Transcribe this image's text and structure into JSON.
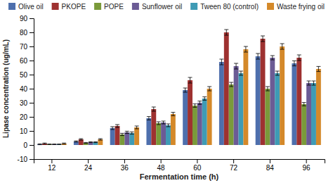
{
  "chart_data": {
    "type": "bar",
    "categories": [
      12,
      24,
      36,
      48,
      60,
      72,
      84,
      96
    ],
    "series": [
      {
        "name": "Olive oil",
        "color": "#4e6fad",
        "values": [
          0.5,
          2.5,
          12.0,
          19.0,
          39.0,
          59.0,
          63.0,
          58.0
        ],
        "errors": [
          0.3,
          0.4,
          1.0,
          1.2,
          1.5,
          2.0,
          2.0,
          1.8
        ]
      },
      {
        "name": "PKOPE",
        "color": "#9e3130",
        "values": [
          1.0,
          4.0,
          13.5,
          25.5,
          46.0,
          80.0,
          75.5,
          62.0
        ],
        "errors": [
          0.4,
          0.5,
          1.0,
          1.5,
          2.0,
          2.0,
          2.0,
          2.0
        ]
      },
      {
        "name": "POPE",
        "color": "#7a9a3a",
        "values": [
          0.5,
          1.5,
          7.5,
          15.5,
          28.0,
          43.0,
          40.0,
          29.0
        ],
        "errors": [
          0.2,
          0.3,
          0.8,
          1.0,
          1.2,
          1.5,
          1.5,
          1.2
        ]
      },
      {
        "name": "Sunflower oil",
        "color": "#6b5b95",
        "values": [
          0.5,
          2.0,
          9.0,
          16.0,
          30.0,
          56.0,
          62.0,
          44.0
        ],
        "errors": [
          0.2,
          0.3,
          0.8,
          1.0,
          1.2,
          2.0,
          1.5,
          1.5
        ]
      },
      {
        "name": "Tween 80 (control)",
        "color": "#3e9bb5",
        "values": [
          0.5,
          2.0,
          8.5,
          14.0,
          33.0,
          51.0,
          51.0,
          44.0
        ],
        "errors": [
          0.2,
          0.3,
          0.8,
          1.0,
          1.2,
          1.5,
          1.5,
          1.5
        ]
      },
      {
        "name": "Waste frying oil",
        "color": "#d4892a",
        "values": [
          1.0,
          4.0,
          12.5,
          22.0,
          40.0,
          68.0,
          70.0,
          54.0
        ],
        "errors": [
          0.4,
          0.5,
          1.0,
          1.2,
          1.5,
          2.0,
          2.0,
          1.8
        ]
      }
    ],
    "xlabel": "Fermentation time (h)",
    "ylabel": "Lipase concentration (ug/mL)",
    "ylim": [
      -10,
      90
    ],
    "yticks": [
      -10,
      0,
      10,
      20,
      30,
      40,
      50,
      60,
      70,
      80,
      90
    ],
    "grid": false,
    "legend": "top"
  }
}
